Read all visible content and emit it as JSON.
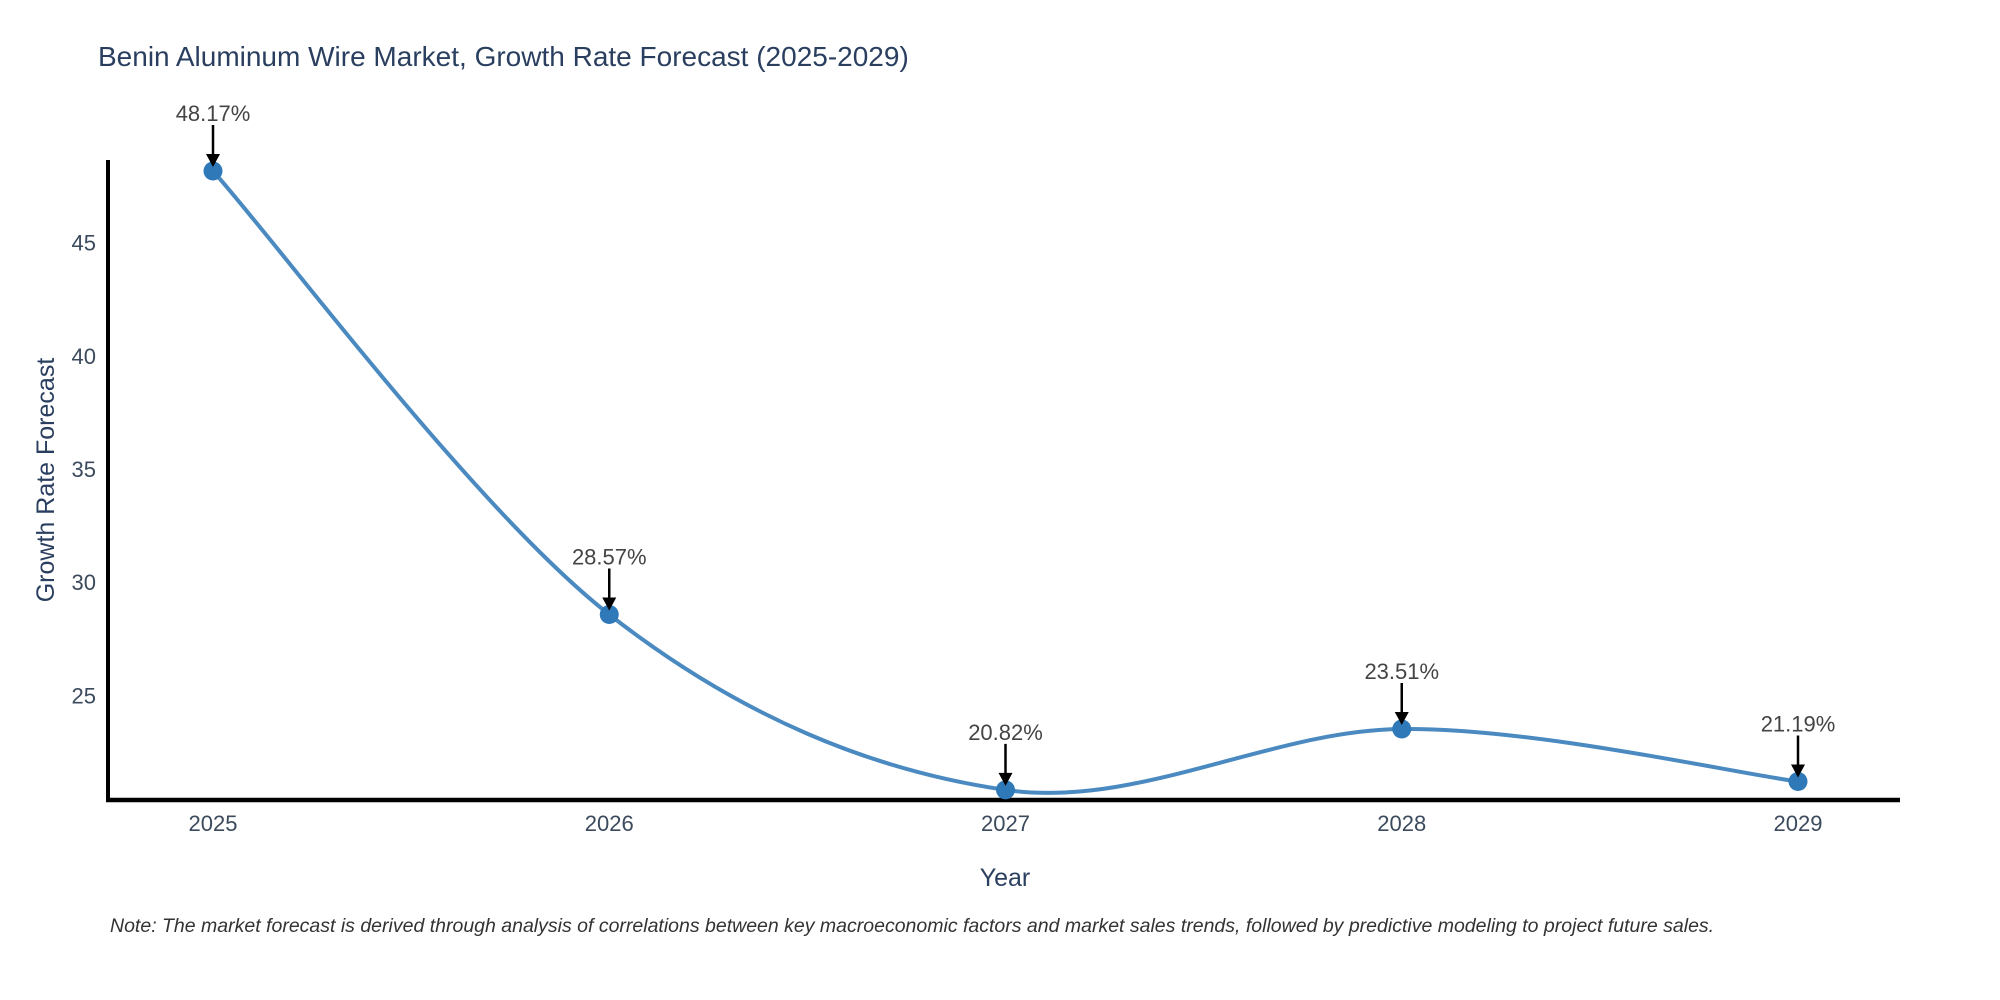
{
  "title": "Benin Aluminum Wire Market, Growth Rate Forecast (2025-2029)",
  "note": "Note: The market forecast is derived through analysis of correlations between key macroeconomic factors and market sales trends, followed by predictive modeling to project future sales.",
  "axes": {
    "x_title": "Year",
    "y_title": "Growth Rate Forecast",
    "y_ticks": [
      45,
      40,
      35,
      30,
      25
    ],
    "x_ticks": [
      "2025",
      "2026",
      "2027",
      "2028",
      "2029"
    ]
  },
  "chart_data": {
    "type": "line",
    "title": "Benin Aluminum Wire Market, Growth Rate Forecast (2025-2029)",
    "xlabel": "Year",
    "ylabel": "Growth Rate Forecast",
    "x": [
      2025,
      2026,
      2027,
      2028,
      2029
    ],
    "series": [
      {
        "name": "Growth Rate Forecast",
        "values": [
          48.17,
          28.57,
          20.82,
          23.51,
          21.19
        ]
      }
    ],
    "point_labels": [
      "48.17%",
      "28.57%",
      "20.82%",
      "23.51%",
      "21.19%"
    ],
    "ylim": [
      20.3,
      48.65
    ],
    "y_tick_interval": 5,
    "grid": false,
    "legend": false,
    "line_shape": "spline",
    "markers": true,
    "annotation_style": "value label with black down arrow above each point"
  },
  "colors": {
    "line": "#4a8ac1",
    "marker": "#2f79b8",
    "title_text": "#2a3f5f",
    "axis_title_text": "#2a3f5f",
    "tick_text": "#3b4a5c",
    "data_label": "#444444",
    "note_text": "#333333",
    "axis_line": "#000000",
    "arrow": "#000000",
    "background": "#ffffff"
  }
}
